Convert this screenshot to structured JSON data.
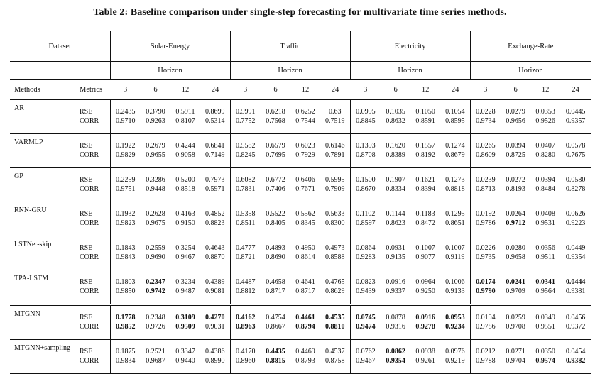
{
  "caption": "Table 2: Baseline comparison under single-step forecasting for multivariate time series methods.",
  "header": {
    "dataset_label": "Dataset",
    "datasets": [
      "Solar-Energy",
      "Traffic",
      "Electricity",
      "Exchange-Rate"
    ],
    "horizon_label": "Horizon",
    "methods_label": "Methods",
    "metrics_label": "Metrics",
    "horizons": [
      "3",
      "6",
      "12",
      "24"
    ]
  },
  "metrics": [
    "RSE",
    "CORR"
  ],
  "rows": [
    {
      "method": "AR",
      "rse": [
        "0.2435",
        "0.3790",
        "0.5911",
        "0.8699",
        "0.5991",
        "0.6218",
        "0.6252",
        "0.63",
        "0.0995",
        "0.1035",
        "0.1050",
        "0.1054",
        "0.0228",
        "0.0279",
        "0.0353",
        "0.0445"
      ],
      "corr": [
        "0.9710",
        "0.9263",
        "0.8107",
        "0.5314",
        "0.7752",
        "0.7568",
        "0.7544",
        "0.7519",
        "0.8845",
        "0.8632",
        "0.8591",
        "0.8595",
        "0.9734",
        "0.9656",
        "0.9526",
        "0.9357"
      ],
      "bold_rse": [],
      "bold_corr": []
    },
    {
      "method": "VARMLP",
      "rse": [
        "0.1922",
        "0.2679",
        "0.4244",
        "0.6841",
        "0.5582",
        "0.6579",
        "0.6023",
        "0.6146",
        "0.1393",
        "0.1620",
        "0.1557",
        "0.1274",
        "0.0265",
        "0.0394",
        "0.0407",
        "0.0578"
      ],
      "corr": [
        "0.9829",
        "0.9655",
        "0.9058",
        "0.7149",
        "0.8245",
        "0.7695",
        "0.7929",
        "0.7891",
        "0.8708",
        "0.8389",
        "0.8192",
        "0.8679",
        "0.8609",
        "0.8725",
        "0.8280",
        "0.7675"
      ],
      "bold_rse": [],
      "bold_corr": []
    },
    {
      "method": "GP",
      "rse": [
        "0.2259",
        "0.3286",
        "0.5200",
        "0.7973",
        "0.6082",
        "0.6772",
        "0.6406",
        "0.5995",
        "0.1500",
        "0.1907",
        "0.1621",
        "0.1273",
        "0.0239",
        "0.0272",
        "0.0394",
        "0.0580"
      ],
      "corr": [
        "0.9751",
        "0.9448",
        "0.8518",
        "0.5971",
        "0.7831",
        "0.7406",
        "0.7671",
        "0.7909",
        "0.8670",
        "0.8334",
        "0.8394",
        "0.8818",
        "0.8713",
        "0.8193",
        "0.8484",
        "0.8278"
      ],
      "bold_rse": [],
      "bold_corr": []
    },
    {
      "method": "RNN-GRU",
      "rse": [
        "0.1932",
        "0.2628",
        "0.4163",
        "0.4852",
        "0.5358",
        "0.5522",
        "0.5562",
        "0.5633",
        "0.1102",
        "0.1144",
        "0.1183",
        "0.1295",
        "0.0192",
        "0.0264",
        "0.0408",
        "0.0626"
      ],
      "corr": [
        "0.9823",
        "0.9675",
        "0.9150",
        "0.8823",
        "0.8511",
        "0.8405",
        "0.8345",
        "0.8300",
        "0.8597",
        "0.8623",
        "0.8472",
        "0.8651",
        "0.9786",
        "0.9712",
        "0.9531",
        "0.9223"
      ],
      "bold_rse": [],
      "bold_corr": [
        13
      ]
    },
    {
      "method": "LSTNet-skip",
      "rse": [
        "0.1843",
        "0.2559",
        "0.3254",
        "0.4643",
        "0.4777",
        "0.4893",
        "0.4950",
        "0.4973",
        "0.0864",
        "0.0931",
        "0.1007",
        "0.1007",
        "0.0226",
        "0.0280",
        "0.0356",
        "0.0449"
      ],
      "corr": [
        "0.9843",
        "0.9690",
        "0.9467",
        "0.8870",
        "0.8721",
        "0.8690",
        "0.8614",
        "0.8588",
        "0.9283",
        "0.9135",
        "0.9077",
        "0.9119",
        "0.9735",
        "0.9658",
        "0.9511",
        "0.9354"
      ],
      "bold_rse": [],
      "bold_corr": []
    },
    {
      "method": "TPA-LSTM",
      "rse": [
        "0.1803",
        "0.2347",
        "0.3234",
        "0.4389",
        "0.4487",
        "0.4658",
        "0.4641",
        "0.4765",
        "0.0823",
        "0.0916",
        "0.0964",
        "0.1006",
        "0.0174",
        "0.0241",
        "0.0341",
        "0.0444"
      ],
      "corr": [
        "0.9850",
        "0.9742",
        "0.9487",
        "0.9081",
        "0.8812",
        "0.8717",
        "0.8717",
        "0.8629",
        "0.9439",
        "0.9337",
        "0.9250",
        "0.9133",
        "0.9790",
        "0.9709",
        "0.9564",
        "0.9381"
      ],
      "bold_rse": [
        1,
        12,
        13,
        14,
        15
      ],
      "bold_corr": [
        1,
        12
      ]
    },
    {
      "method": "MTGNN",
      "rse": [
        "0.1778",
        "0.2348",
        "0.3109",
        "0.4270",
        "0.4162",
        "0.4754",
        "0.4461",
        "0.4535",
        "0.0745",
        "0.0878",
        "0.0916",
        "0.0953",
        "0.0194",
        "0.0259",
        "0.0349",
        "0.0456"
      ],
      "corr": [
        "0.9852",
        "0.9726",
        "0.9509",
        "0.9031",
        "0.8963",
        "0.8667",
        "0.8794",
        "0.8810",
        "0.9474",
        "0.9316",
        "0.9278",
        "0.9234",
        "0.9786",
        "0.9708",
        "0.9551",
        "0.9372"
      ],
      "bold_rse": [
        0,
        2,
        3,
        4,
        6,
        7,
        8,
        10,
        11
      ],
      "bold_corr": [
        0,
        2,
        4,
        6,
        7,
        8,
        10,
        11
      ]
    },
    {
      "method": "MTGNN+sampling",
      "rse": [
        "0.1875",
        "0.2521",
        "0.3347",
        "0.4386",
        "0.4170",
        "0.4435",
        "0.4469",
        "0.4537",
        "0.0762",
        "0.0862",
        "0.0938",
        "0.0976",
        "0.0212",
        "0.0271",
        "0.0350",
        "0.0454"
      ],
      "corr": [
        "0.9834",
        "0.9687",
        "0.9440",
        "0.8990",
        "0.8960",
        "0.8815",
        "0.8793",
        "0.8758",
        "0.9467",
        "0.9354",
        "0.9261",
        "0.9219",
        "0.9788",
        "0.9704",
        "0.9574",
        "0.9382"
      ],
      "bold_rse": [
        5,
        9
      ],
      "bold_corr": [
        5,
        9,
        14,
        15
      ]
    }
  ]
}
